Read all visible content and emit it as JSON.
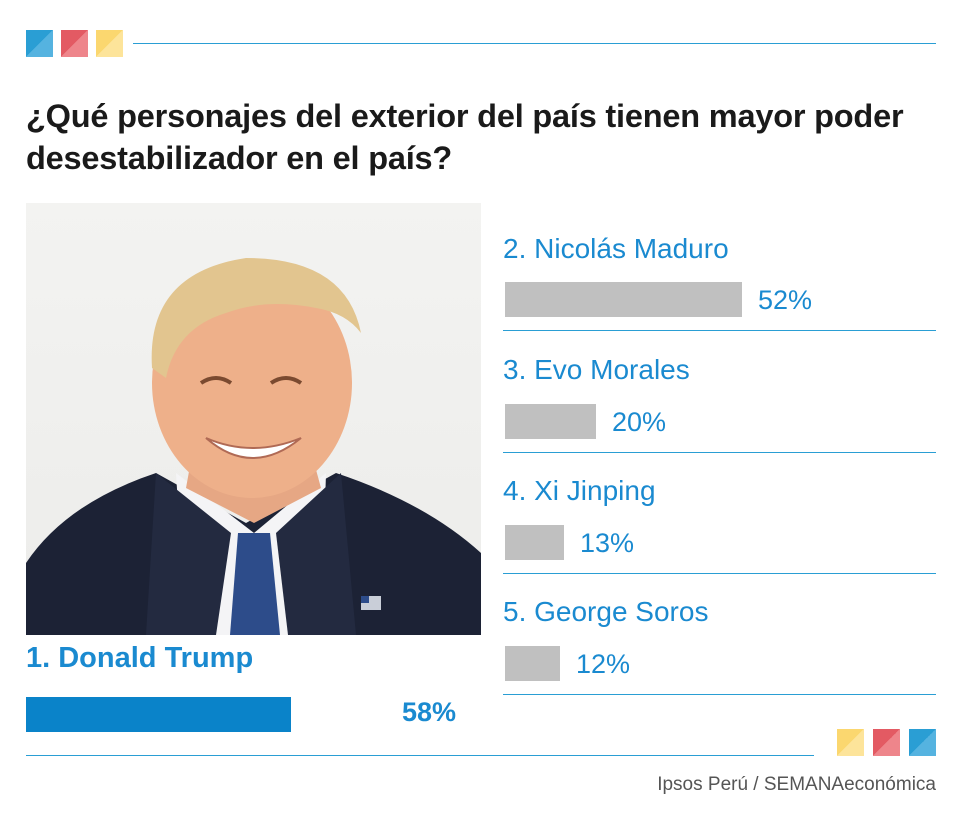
{
  "title": "¿Qué personajes del exterior del país tienen mayor poder desestabilizador en el país?",
  "source": "Ipsos Perú / SEMANAeconómica",
  "colors": {
    "accent_blue": "#0a83c9",
    "text_blue": "#1a8ad0",
    "bar_grey": "#c0c0c0",
    "red": "#e35a63",
    "yellow": "#fbd76f",
    "light_blue": "#2a9ed4"
  },
  "chart_data": {
    "type": "bar",
    "orientation": "horizontal",
    "title": "¿Qué personajes del exterior del país tienen mayor poder desestabilizador en el país?",
    "unit": "%",
    "categories": [
      "1. Donald  Trump",
      "2. Nicolás Maduro",
      "3. Evo Morales",
      "4. Xi Jinping",
      "5. George Soros"
    ],
    "values": [
      58,
      52,
      20,
      13,
      12
    ],
    "labels": [
      "58%",
      "52%",
      "20%",
      "13%",
      "12%"
    ],
    "xlim": [
      0,
      100
    ],
    "grid": false,
    "legend": "none"
  }
}
